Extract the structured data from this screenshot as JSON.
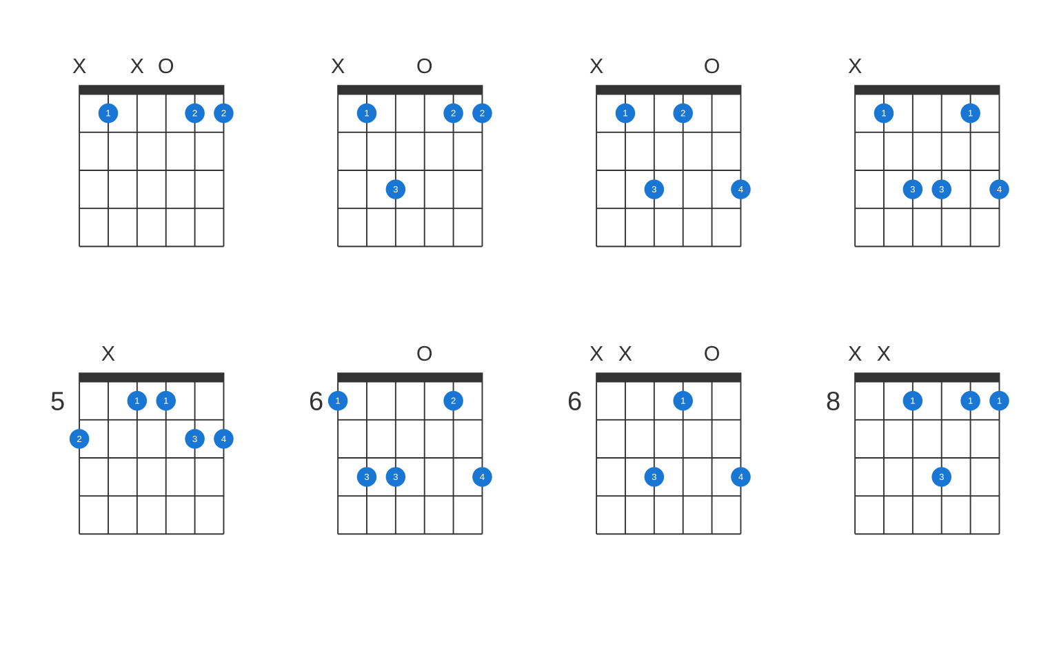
{
  "layout": {
    "numStrings": 6,
    "numFrets": 4,
    "stringSpacing": 44,
    "fretSpacing": 58,
    "nutHeight": 14,
    "dotRadius": 15,
    "leftPad": 60,
    "topPad": 56,
    "colors": {
      "dot": "#1976d2",
      "dotText": "#ffffff",
      "line": "#333333",
      "nut": "#333333",
      "background": "#ffffff"
    },
    "headerFontSize": 32,
    "fretLabelFontSize": 40
  },
  "chords": [
    {
      "startFret": 1,
      "header": [
        "X",
        null,
        "X",
        "O",
        null,
        null
      ],
      "dots": [
        {
          "string": 2,
          "fret": 1,
          "finger": "1"
        },
        {
          "string": 5,
          "fret": 1,
          "finger": "2"
        },
        {
          "string": 6,
          "fret": 1,
          "finger": "2"
        }
      ]
    },
    {
      "startFret": 1,
      "header": [
        "X",
        null,
        null,
        "O",
        null,
        null
      ],
      "dots": [
        {
          "string": 2,
          "fret": 1,
          "finger": "1"
        },
        {
          "string": 5,
          "fret": 1,
          "finger": "2"
        },
        {
          "string": 6,
          "fret": 1,
          "finger": "2"
        },
        {
          "string": 3,
          "fret": 3,
          "finger": "3"
        }
      ]
    },
    {
      "startFret": 1,
      "header": [
        "X",
        null,
        null,
        null,
        "O",
        null
      ],
      "dots": [
        {
          "string": 2,
          "fret": 1,
          "finger": "1"
        },
        {
          "string": 4,
          "fret": 1,
          "finger": "2"
        },
        {
          "string": 3,
          "fret": 3,
          "finger": "3"
        },
        {
          "string": 6,
          "fret": 3,
          "finger": "4"
        }
      ]
    },
    {
      "startFret": 1,
      "header": [
        "X",
        null,
        null,
        null,
        null,
        null
      ],
      "dots": [
        {
          "string": 2,
          "fret": 1,
          "finger": "1"
        },
        {
          "string": 5,
          "fret": 1,
          "finger": "1"
        },
        {
          "string": 3,
          "fret": 3,
          "finger": "3"
        },
        {
          "string": 4,
          "fret": 3,
          "finger": "3"
        },
        {
          "string": 6,
          "fret": 3,
          "finger": "4"
        }
      ]
    },
    {
      "startFret": 5,
      "header": [
        null,
        "X",
        null,
        null,
        null,
        null
      ],
      "dots": [
        {
          "string": 3,
          "fret": 1,
          "finger": "1"
        },
        {
          "string": 4,
          "fret": 1,
          "finger": "1"
        },
        {
          "string": 1,
          "fret": 2,
          "finger": "2"
        },
        {
          "string": 5,
          "fret": 2,
          "finger": "3"
        },
        {
          "string": 6,
          "fret": 2,
          "finger": "4"
        }
      ]
    },
    {
      "startFret": 6,
      "header": [
        null,
        null,
        null,
        "O",
        null,
        null
      ],
      "dots": [
        {
          "string": 1,
          "fret": 1,
          "finger": "1"
        },
        {
          "string": 5,
          "fret": 1,
          "finger": "2"
        },
        {
          "string": 2,
          "fret": 3,
          "finger": "3"
        },
        {
          "string": 3,
          "fret": 3,
          "finger": "3"
        },
        {
          "string": 6,
          "fret": 3,
          "finger": "4"
        }
      ]
    },
    {
      "startFret": 6,
      "header": [
        "X",
        "X",
        null,
        null,
        "O",
        null
      ],
      "dots": [
        {
          "string": 4,
          "fret": 1,
          "finger": "1"
        },
        {
          "string": 3,
          "fret": 3,
          "finger": "3"
        },
        {
          "string": 6,
          "fret": 3,
          "finger": "4"
        }
      ]
    },
    {
      "startFret": 8,
      "header": [
        "X",
        "X",
        null,
        null,
        null,
        null
      ],
      "dots": [
        {
          "string": 3,
          "fret": 1,
          "finger": "1"
        },
        {
          "string": 5,
          "fret": 1,
          "finger": "1"
        },
        {
          "string": 6,
          "fret": 1,
          "finger": "1"
        },
        {
          "string": 4,
          "fret": 3,
          "finger": "3"
        }
      ]
    }
  ]
}
